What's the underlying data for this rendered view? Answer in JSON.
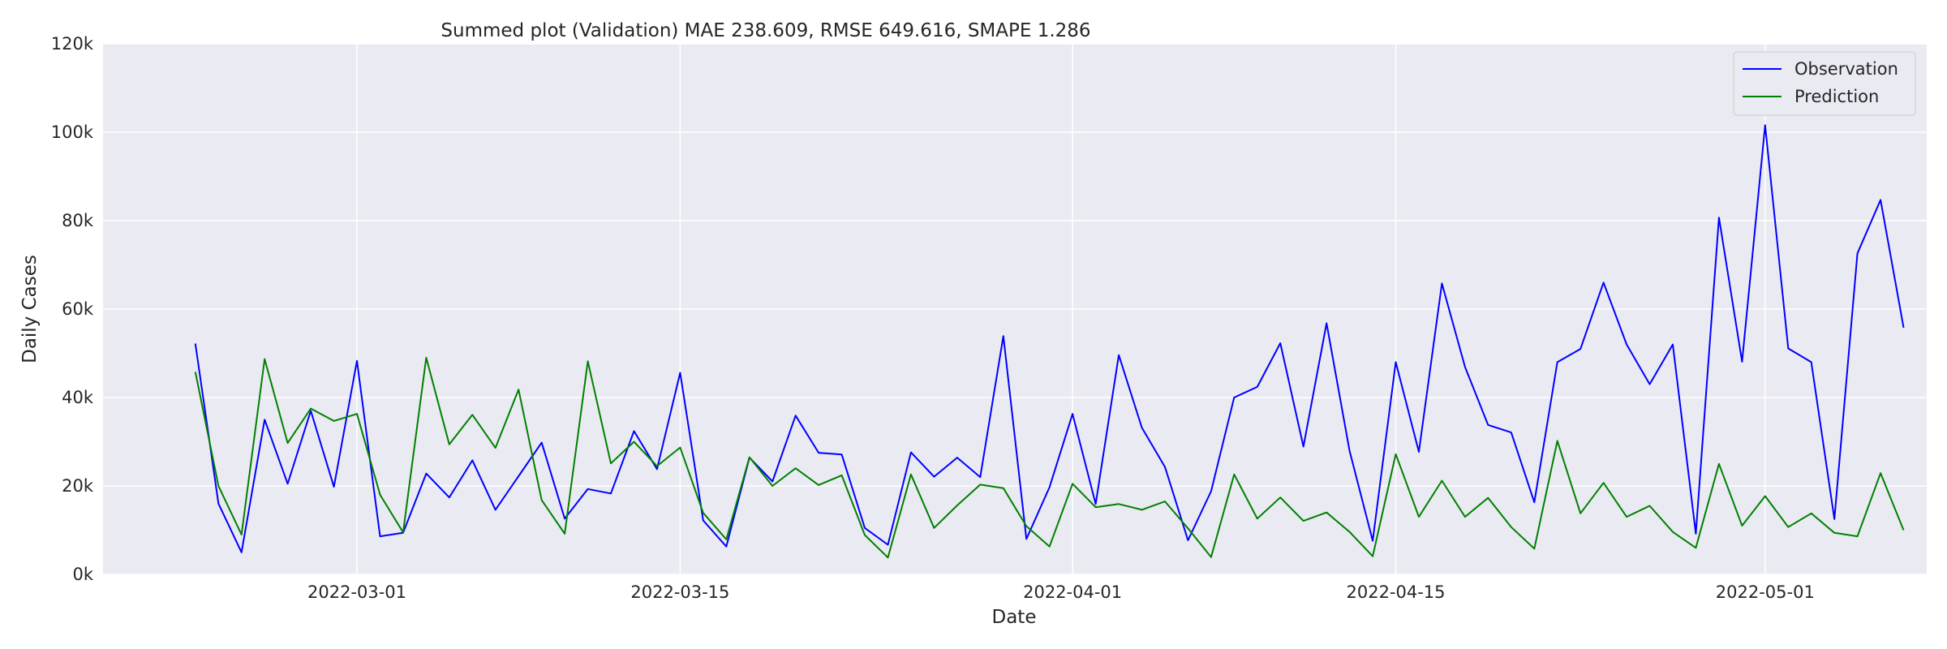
{
  "chart_data": {
    "type": "line",
    "title": "Summed plot (Validation) MAE 238.609, RMSE 649.616, SMAPE 1.286",
    "xlabel": "Date",
    "ylabel": "Daily Cases",
    "x_start": "2022-02-22",
    "x_end": "2022-05-05",
    "xlim": [
      "2022-02-18",
      "2022-05-08"
    ],
    "ylim": [
      0,
      120000
    ],
    "yticks": [
      0,
      20000,
      40000,
      60000,
      80000,
      100000,
      120000
    ],
    "ytick_labels": [
      "0k",
      "20k",
      "40k",
      "60k",
      "80k",
      "100k",
      "120k"
    ],
    "xticks": [
      "2022-03-01",
      "2022-03-15",
      "2022-04-01",
      "2022-04-15",
      "2022-05-01"
    ],
    "grid": true,
    "legend_placement": "top-right",
    "series": [
      {
        "name": "Observation",
        "color": "#0000ff",
        "values": [
          52200,
          16000,
          5000,
          35000,
          20500,
          37000,
          19800,
          48300,
          8600,
          9400,
          22800,
          17400,
          25800,
          14600,
          22200,
          29800,
          12600,
          19300,
          18300,
          32400,
          23800,
          45600,
          12200,
          6300,
          26400,
          21000,
          35900,
          27500,
          27100,
          10500,
          6700,
          27600,
          22100,
          26400,
          22000,
          53900,
          8000,
          19700,
          36300,
          15900,
          49600,
          33200,
          24300,
          7700,
          18800,
          40000,
          42400,
          52300,
          28900,
          56800,
          27900,
          7600,
          48000,
          27700,
          65800,
          46900,
          33800,
          32100,
          16300,
          48000,
          51000,
          66000,
          52000,
          43000,
          52000,
          9200,
          80700,
          48100,
          101600,
          51100,
          48000,
          12500,
          72600,
          84700,
          55800
        ]
      },
      {
        "name": "Prediction",
        "color": "#008000",
        "values": [
          45800,
          20000,
          9000,
          48700,
          29700,
          37500,
          34700,
          36300,
          18000,
          9500,
          49000,
          29400,
          36100,
          28600,
          41800,
          16800,
          9200,
          48200,
          25100,
          30000,
          24500,
          28700,
          13900,
          7900,
          26500,
          20000,
          24000,
          20200,
          22400,
          8900,
          3800,
          22600,
          10500,
          15600,
          20300,
          19500,
          10900,
          6300,
          20500,
          15200,
          15900,
          14600,
          16500,
          10400,
          3900,
          22600,
          12600,
          17400,
          12100,
          14000,
          9600,
          4100,
          27200,
          13000,
          21200,
          13000,
          17300,
          10700,
          5800,
          30200,
          13800,
          20700,
          13000,
          15500,
          9600,
          6000,
          25000,
          11000,
          17700,
          10700,
          13800,
          9400,
          8600,
          22900,
          10000
        ]
      }
    ]
  }
}
